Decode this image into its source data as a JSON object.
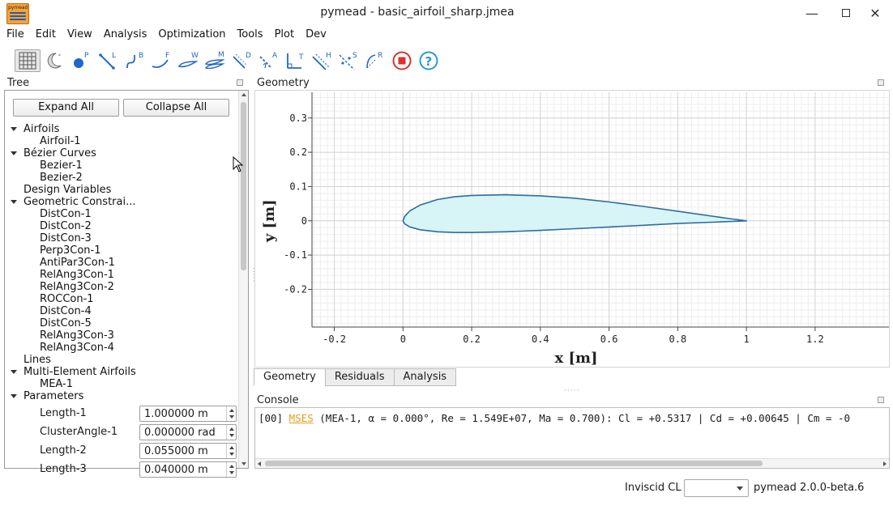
{
  "window": {
    "title": "pymead - basic_airfoil_sharp.jmea",
    "icon_text": "pymead",
    "minimize_icon": "minimize-icon",
    "maximize_icon": "maximize-icon",
    "close_icon": "close-icon"
  },
  "menu": [
    "File",
    "Edit",
    "View",
    "Analysis",
    "Optimization",
    "Tools",
    "Plot",
    "Dev"
  ],
  "toolbar": [
    {
      "name": "grid-icon",
      "sup": ""
    },
    {
      "name": "dark-mode-icon",
      "sup": ""
    },
    {
      "name": "point-icon",
      "sup": "P"
    },
    {
      "name": "line-icon",
      "sup": "L"
    },
    {
      "name": "bezier-icon",
      "sup": "B"
    },
    {
      "name": "ferguson-icon",
      "sup": "F"
    },
    {
      "name": "airfoil-icon",
      "sup": "W"
    },
    {
      "name": "mea-icon",
      "sup": "M"
    },
    {
      "name": "distance-constraint-icon",
      "sup": "D"
    },
    {
      "name": "angle-constraint-icon",
      "sup": "A"
    },
    {
      "name": "perpendicular-constraint-icon",
      "sup": "T"
    },
    {
      "name": "parallel-constraint-icon",
      "sup": "H"
    },
    {
      "name": "symmetry-constraint-icon",
      "sup": "S"
    },
    {
      "name": "radius-constraint-icon",
      "sup": "R"
    },
    {
      "name": "stop-icon",
      "sup": ""
    },
    {
      "name": "help-icon",
      "sup": "?"
    }
  ],
  "tree": {
    "title": "Tree",
    "expand_all": "Expand All",
    "collapse_all": "Collapse All",
    "nodes": [
      {
        "label": "Airfoils",
        "level": 0,
        "expanded": true
      },
      {
        "label": "Airfoil-1",
        "level": 1
      },
      {
        "label": "Bézier Curves",
        "level": 0,
        "expanded": true
      },
      {
        "label": "Bezier-1",
        "level": 1
      },
      {
        "label": "Bezier-2",
        "level": 1
      },
      {
        "label": "Design Variables",
        "level": 0
      },
      {
        "label": "Geometric Constrai...",
        "level": 0,
        "expanded": true
      },
      {
        "label": "DistCon-1",
        "level": 1
      },
      {
        "label": "DistCon-2",
        "level": 1
      },
      {
        "label": "DistCon-3",
        "level": 1
      },
      {
        "label": "Perp3Con-1",
        "level": 1
      },
      {
        "label": "AntiPar3Con-1",
        "level": 1
      },
      {
        "label": "RelAng3Con-1",
        "level": 1
      },
      {
        "label": "RelAng3Con-2",
        "level": 1
      },
      {
        "label": "ROCCon-1",
        "level": 1
      },
      {
        "label": "DistCon-4",
        "level": 1
      },
      {
        "label": "DistCon-5",
        "level": 1
      },
      {
        "label": "RelAng3Con-3",
        "level": 1
      },
      {
        "label": "RelAng3Con-4",
        "level": 1
      },
      {
        "label": "Lines",
        "level": 0
      },
      {
        "label": "Multi-Element Airfoils",
        "level": 0,
        "expanded": true
      },
      {
        "label": "MEA-1",
        "level": 1
      },
      {
        "label": "Parameters",
        "level": 0,
        "expanded": true
      }
    ],
    "parameters": [
      {
        "label": "Length-1",
        "value": "1.000000 m"
      },
      {
        "label": "ClusterAngle-1",
        "value": "0.000000 rad"
      },
      {
        "label": "Length-2",
        "value": "0.055000 m"
      },
      {
        "label": "Length-3",
        "value": "0.040000 m"
      }
    ]
  },
  "geometry": {
    "title": "Geometry",
    "xlabel": "x [m]",
    "ylabel": "y [m]",
    "xticks": [
      "-0.2",
      "0",
      "0.2",
      "0.4",
      "0.6",
      "0.8",
      "1",
      "1.2"
    ],
    "yticks": [
      "0.3",
      "0.2",
      "0.1",
      "0",
      "-0.1",
      "-0.2"
    ],
    "xlim": [
      -0.265,
      1.415
    ],
    "ylim": [
      -0.31,
      0.375
    ],
    "airfoil_color": "#2e6c9e",
    "airfoil_fill": "#d7f4f6",
    "airfoil_upper": [
      [
        1.0,
        0.0
      ],
      [
        0.95,
        0.0065
      ],
      [
        0.9,
        0.0135
      ],
      [
        0.8,
        0.028
      ],
      [
        0.7,
        0.042
      ],
      [
        0.6,
        0.055
      ],
      [
        0.5,
        0.066
      ],
      [
        0.4,
        0.073
      ],
      [
        0.3,
        0.076
      ],
      [
        0.2,
        0.074
      ],
      [
        0.15,
        0.07
      ],
      [
        0.1,
        0.062
      ],
      [
        0.05,
        0.046
      ],
      [
        0.02,
        0.029
      ],
      [
        0.005,
        0.013
      ],
      [
        0.0,
        0.0
      ]
    ],
    "airfoil_lower": [
      [
        0.0,
        0.0
      ],
      [
        0.005,
        -0.009
      ],
      [
        0.02,
        -0.018
      ],
      [
        0.05,
        -0.026
      ],
      [
        0.1,
        -0.032
      ],
      [
        0.15,
        -0.034
      ],
      [
        0.2,
        -0.034
      ],
      [
        0.3,
        -0.032
      ],
      [
        0.4,
        -0.028
      ],
      [
        0.5,
        -0.023
      ],
      [
        0.6,
        -0.018
      ],
      [
        0.7,
        -0.013
      ],
      [
        0.8,
        -0.008
      ],
      [
        0.9,
        -0.004
      ],
      [
        1.0,
        0.0
      ]
    ]
  },
  "tabs": [
    "Geometry",
    "Residuals",
    "Analysis"
  ],
  "console": {
    "title": "Console",
    "prefix": "[00] ",
    "link": "MSES",
    "text": " (MEA-1, α = 0.000°, Re = 1.549E+07, Ma = 0.700): Cl = +0.5317 | Cd = +0.00645 | Cm = -0"
  },
  "status": {
    "inviscid_label": "Inviscid CL",
    "inviscid_value": "",
    "version": "pymead 2.0.0-beta.6"
  }
}
